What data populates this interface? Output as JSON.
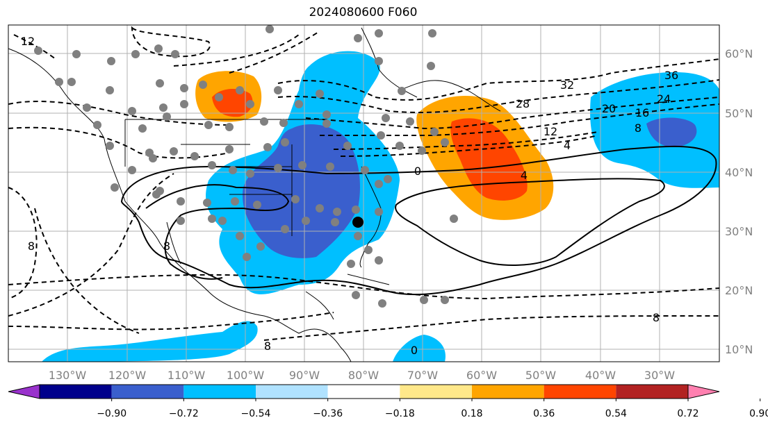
{
  "title": "2024080600 F060",
  "lon_labels": [
    "130°W",
    "120°W",
    "110°W",
    "100°W",
    "90°W",
    "80°W",
    "70°W",
    "60°W",
    "50°W",
    "40°W",
    "30°W"
  ],
  "lat_labels": [
    "60°N",
    "50°N",
    "40°N",
    "30°N",
    "20°N",
    "10°N"
  ],
  "colorbar": {
    "colors": [
      "#9932cc",
      "#00008b",
      "#3a5fcd",
      "#00bfff",
      "#b0e2ff",
      "#ffffff",
      "#ffe88a",
      "#ffa500",
      "#ff4500",
      "#b22222",
      "#ff80b0"
    ],
    "ticks": [
      "−0.90",
      "−0.72",
      "−0.54",
      "−0.36",
      "−0.18",
      "0.18",
      "0.36",
      "0.54",
      "0.72",
      "0.90"
    ]
  },
  "contour_labels": [
    "12",
    "8",
    "8",
    "8",
    "0",
    "4",
    "4",
    "8",
    "12",
    "16",
    "20",
    "24",
    "28",
    "32",
    "36",
    "8",
    "0"
  ],
  "station_marker_color": "#808080",
  "highlight_marker_color": "#000000"
}
